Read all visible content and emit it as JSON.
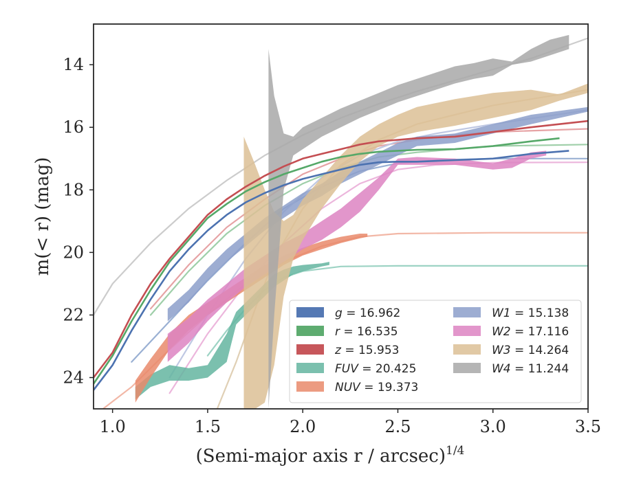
{
  "chart_data": {
    "type": "line",
    "xlabel": "(Semi-major axis r / arcsec)",
    "xlabel_sup": "1/4",
    "ylabel": "m(< r) (mag)",
    "xlim": [
      0.9,
      3.5
    ],
    "ylim": [
      25,
      12.7
    ],
    "y_inverted": true,
    "xticks": [
      "1.0",
      "1.5",
      "2.0",
      "2.5",
      "3.0",
      "3.5"
    ],
    "yticks": [
      "14",
      "16",
      "18",
      "20",
      "22",
      "24"
    ],
    "grid": false,
    "legend_position": "lower-right",
    "series": [
      {
        "name": "g = 16.962",
        "color": "#4c72b0",
        "style": "line",
        "x": [
          0.9,
          1.0,
          1.1,
          1.2,
          1.3,
          1.4,
          1.5,
          1.6,
          1.7,
          1.8,
          1.9,
          2.0,
          2.1,
          2.2,
          2.3,
          2.4,
          2.5,
          2.6,
          2.8,
          3.0,
          3.2,
          3.4
        ],
        "y": [
          24.4,
          23.6,
          22.5,
          21.5,
          20.6,
          19.9,
          19.3,
          18.8,
          18.4,
          18.1,
          17.85,
          17.65,
          17.5,
          17.35,
          17.2,
          17.12,
          17.1,
          17.1,
          17.05,
          17.0,
          16.85,
          16.75
        ]
      },
      {
        "name": "r = 16.535",
        "color": "#55a868",
        "style": "line",
        "x": [
          0.9,
          1.0,
          1.1,
          1.2,
          1.3,
          1.4,
          1.5,
          1.6,
          1.7,
          1.8,
          1.9,
          2.0,
          2.1,
          2.2,
          2.3,
          2.4,
          2.5,
          2.6,
          2.8,
          3.0,
          3.2,
          3.35
        ],
        "y": [
          24.2,
          23.3,
          22.2,
          21.2,
          20.3,
          19.6,
          18.9,
          18.45,
          18.05,
          17.75,
          17.5,
          17.3,
          17.1,
          16.95,
          16.85,
          16.78,
          16.75,
          16.72,
          16.7,
          16.6,
          16.45,
          16.35
        ]
      },
      {
        "name": "z = 15.953",
        "color": "#c44e52",
        "style": "line",
        "x": [
          0.9,
          1.0,
          1.1,
          1.2,
          1.3,
          1.4,
          1.5,
          1.6,
          1.7,
          1.8,
          1.9,
          2.0,
          2.1,
          2.2,
          2.3,
          2.4,
          2.5,
          2.6,
          2.8,
          3.0,
          3.2,
          3.5
        ],
        "y": [
          24.0,
          23.2,
          22.0,
          21.0,
          20.2,
          19.5,
          18.8,
          18.3,
          17.9,
          17.55,
          17.25,
          17.0,
          16.85,
          16.7,
          16.55,
          16.45,
          16.4,
          16.35,
          16.3,
          16.15,
          16.0,
          15.8
        ]
      },
      {
        "name": "FUV = 20.425",
        "color": "#64b5a0",
        "style": "band",
        "x": [
          1.12,
          1.2,
          1.3,
          1.4,
          1.5,
          1.6,
          1.65,
          1.7,
          1.8,
          1.85,
          1.9,
          1.95,
          2.0,
          2.1,
          2.14
        ],
        "y_low": [
          24.7,
          24.3,
          24.1,
          24.1,
          24.0,
          23.5,
          22.3,
          22.0,
          21.4,
          21.1,
          20.9,
          20.7,
          20.6,
          20.45,
          20.4
        ],
        "y_high": [
          24.3,
          23.9,
          23.6,
          23.7,
          23.6,
          22.6,
          21.9,
          21.6,
          21.0,
          20.7,
          20.55,
          20.45,
          20.4,
          20.35,
          20.3
        ]
      },
      {
        "name": "NUV = 19.373",
        "color": "#e9896b",
        "style": "band",
        "x": [
          1.12,
          1.2,
          1.3,
          1.4,
          1.5,
          1.6,
          1.7,
          1.8,
          1.9,
          2.0,
          2.1,
          2.2,
          2.3,
          2.34
        ],
        "y_low": [
          24.8,
          24.0,
          23.1,
          22.5,
          22.0,
          21.6,
          21.2,
          20.8,
          20.4,
          20.1,
          19.9,
          19.7,
          19.55,
          19.5
        ],
        "y_high": [
          24.1,
          23.4,
          22.6,
          22.0,
          21.6,
          21.2,
          20.8,
          20.4,
          20.1,
          19.85,
          19.65,
          19.5,
          19.4,
          19.4
        ]
      },
      {
        "name": "W1 = 15.138",
        "color": "#8c9fca",
        "style": "band",
        "x": [
          1.29,
          1.4,
          1.5,
          1.6,
          1.7,
          1.8,
          1.9,
          2.0,
          2.1,
          2.2,
          2.3,
          2.4,
          2.5,
          2.6,
          2.8,
          3.0,
          3.2,
          3.5
        ],
        "y_low": [
          22.2,
          21.6,
          20.9,
          20.3,
          19.8,
          19.3,
          18.9,
          18.5,
          18.2,
          17.8,
          17.5,
          17.2,
          16.9,
          16.6,
          16.5,
          16.2,
          15.9,
          15.5
        ],
        "y_high": [
          21.8,
          21.2,
          20.5,
          19.9,
          19.4,
          18.9,
          18.5,
          18.1,
          17.8,
          17.4,
          17.1,
          16.8,
          16.5,
          16.3,
          16.2,
          15.9,
          15.6,
          15.35
        ]
      },
      {
        "name": "W2 = 17.116",
        "color": "#dd84c2",
        "style": "band",
        "x": [
          1.29,
          1.4,
          1.5,
          1.6,
          1.7,
          1.8,
          1.9,
          2.0,
          2.1,
          2.2,
          2.3,
          2.4,
          2.5,
          2.6,
          2.8,
          3.0,
          3.1,
          3.2,
          3.28
        ],
        "y_low": [
          23.5,
          22.9,
          22.2,
          21.6,
          21.1,
          20.7,
          20.3,
          19.9,
          19.6,
          19.2,
          18.7,
          18.0,
          17.2,
          17.2,
          17.2,
          17.35,
          17.3,
          17.0,
          16.9
        ],
        "y_high": [
          22.6,
          22.1,
          21.5,
          21.0,
          20.5,
          20.1,
          19.7,
          19.4,
          19.0,
          18.6,
          18.1,
          17.6,
          17.0,
          16.95,
          17.0,
          17.15,
          17.0,
          16.8,
          16.75
        ]
      },
      {
        "name": "W3 = 14.264",
        "color": "#dcbf95",
        "style": "band",
        "x": [
          1.69,
          1.75,
          1.8,
          1.85,
          1.9,
          1.95,
          2.0,
          2.1,
          2.2,
          2.3,
          2.4,
          2.5,
          2.6,
          2.8,
          3.0,
          3.2,
          3.35,
          3.5
        ],
        "y_low": [
          25.0,
          25.0,
          24.8,
          23.6,
          21.4,
          20.2,
          19.6,
          18.6,
          17.8,
          17.1,
          16.6,
          16.3,
          16.15,
          15.95,
          15.7,
          15.45,
          15.15,
          14.9
        ],
        "y_high": [
          16.3,
          17.2,
          18.0,
          18.7,
          19.0,
          18.8,
          18.3,
          17.6,
          16.9,
          16.3,
          15.9,
          15.6,
          15.35,
          15.1,
          14.9,
          14.8,
          14.95,
          14.6
        ]
      },
      {
        "name": "W4 = 11.244",
        "color": "#a8a8a8",
        "style": "band",
        "x": [
          1.82,
          1.85,
          1.9,
          1.95,
          2.0,
          2.1,
          2.2,
          2.3,
          2.4,
          2.5,
          2.6,
          2.7,
          2.8,
          2.9,
          3.0,
          3.1,
          3.2,
          3.3,
          3.4
        ],
        "y_low": [
          25.0,
          22.0,
          18.0,
          16.9,
          16.7,
          16.3,
          16.0,
          15.7,
          15.45,
          15.2,
          15.0,
          14.8,
          14.6,
          14.45,
          14.35,
          14.0,
          13.9,
          13.7,
          13.5
        ],
        "y_high": [
          13.5,
          15.0,
          16.2,
          16.3,
          16.0,
          15.7,
          15.4,
          15.15,
          14.9,
          14.65,
          14.45,
          14.25,
          14.05,
          13.95,
          13.8,
          13.9,
          13.5,
          13.2,
          13.05
        ]
      },
      {
        "name": "g model",
        "color": "#9ab0d3",
        "style": "model",
        "x": [
          1.1,
          1.3,
          1.5,
          1.7,
          1.9,
          2.1,
          2.3,
          2.5,
          2.7,
          3.0,
          3.5
        ],
        "y": [
          23.5,
          22.2,
          20.9,
          19.7,
          18.6,
          17.9,
          17.4,
          17.15,
          17.05,
          17.0,
          17.0
        ]
      },
      {
        "name": "r model",
        "color": "#9fcfa9",
        "style": "model",
        "x": [
          1.2,
          1.4,
          1.6,
          1.8,
          2.0,
          2.2,
          2.4,
          2.6,
          2.8,
          3.0,
          3.5
        ],
        "y": [
          22.0,
          20.6,
          19.4,
          18.5,
          17.8,
          17.3,
          16.95,
          16.8,
          16.7,
          16.6,
          16.55
        ]
      },
      {
        "name": "z model",
        "color": "#e6a3a5",
        "style": "model",
        "x": [
          1.2,
          1.4,
          1.6,
          1.8,
          2.0,
          2.2,
          2.4,
          2.6,
          2.8,
          3.0,
          3.5
        ],
        "y": [
          21.8,
          20.4,
          19.2,
          18.3,
          17.5,
          17.0,
          16.6,
          16.4,
          16.25,
          16.15,
          16.05
        ]
      },
      {
        "name": "FUV model",
        "color": "#9dd3c4",
        "style": "model",
        "x": [
          1.5,
          1.6,
          1.7,
          1.8,
          1.9,
          2.0,
          2.2,
          2.5,
          3.0,
          3.5
        ],
        "y": [
          23.3,
          22.5,
          21.8,
          21.2,
          20.8,
          20.6,
          20.45,
          20.43,
          20.43,
          20.43
        ]
      },
      {
        "name": "NUV model",
        "color": "#f2b7a6",
        "style": "model",
        "x": [
          0.95,
          1.1,
          1.3,
          1.5,
          1.7,
          1.9,
          2.1,
          2.3,
          2.5,
          3.0,
          3.5
        ],
        "y": [
          25.0,
          24.3,
          23.1,
          22.0,
          21.0,
          20.3,
          19.8,
          19.5,
          19.4,
          19.37,
          19.37
        ]
      },
      {
        "name": "W1 model",
        "color": "#bfc8e3",
        "style": "model",
        "x": [
          1.3,
          1.5,
          1.7,
          1.9,
          2.1,
          2.3,
          2.5,
          2.7,
          3.0,
          3.5
        ],
        "y": [
          24.0,
          22.0,
          20.2,
          18.7,
          17.6,
          16.9,
          16.45,
          16.2,
          15.9,
          15.45
        ]
      },
      {
        "name": "W2 model",
        "color": "#ecb6dc",
        "style": "model",
        "x": [
          1.3,
          1.5,
          1.7,
          1.9,
          2.1,
          2.3,
          2.5,
          2.7,
          3.0,
          3.5
        ],
        "y": [
          24.5,
          22.6,
          21.0,
          19.7,
          18.6,
          17.8,
          17.35,
          17.2,
          17.13,
          17.12
        ]
      },
      {
        "name": "W3 model",
        "color": "#e0d0b5",
        "style": "model",
        "x": [
          1.55,
          1.65,
          1.75,
          1.85,
          2.0,
          2.2,
          2.4,
          2.6,
          2.8,
          3.0,
          3.5
        ],
        "y": [
          25.0,
          23.5,
          21.8,
          20.2,
          18.6,
          17.2,
          16.4,
          15.9,
          15.6,
          15.3,
          14.8
        ]
      },
      {
        "name": "W4 model",
        "color": "#cccccc",
        "style": "model",
        "x": [
          0.9,
          1.0,
          1.2,
          1.4,
          1.6,
          1.8,
          2.0,
          2.2,
          2.4,
          2.6,
          2.8,
          3.0,
          3.2,
          3.5
        ],
        "y": [
          22.0,
          21.0,
          19.7,
          18.6,
          17.7,
          16.9,
          16.25,
          15.7,
          15.25,
          14.85,
          14.5,
          14.15,
          13.8,
          13.15
        ]
      }
    ],
    "legend": [
      {
        "label_base": "g",
        "label_value": " = 16.962",
        "color": "#4c72b0",
        "band": false
      },
      {
        "label_base": "r",
        "label_value": " = 16.535",
        "color": "#55a868",
        "band": false
      },
      {
        "label_base": "z",
        "label_value": " = 15.953",
        "color": "#c44e52",
        "band": false
      },
      {
        "label_base": "FUV",
        "label_value": " = 20.425",
        "color": "#64b5a0",
        "band": true
      },
      {
        "label_base": "NUV",
        "label_value": " = 19.373",
        "color": "#e9896b",
        "band": true
      },
      {
        "label_base": "W1",
        "label_value": " = 15.138",
        "color": "#8c9fca",
        "band": true
      },
      {
        "label_base": "W2",
        "label_value": " = 17.116",
        "color": "#dd84c2",
        "band": true
      },
      {
        "label_base": "W3",
        "label_value": " = 14.264",
        "color": "#dcbf95",
        "band": true
      },
      {
        "label_base": "W4",
        "label_value": " = 11.244",
        "color": "#a8a8a8",
        "band": true
      }
    ]
  }
}
